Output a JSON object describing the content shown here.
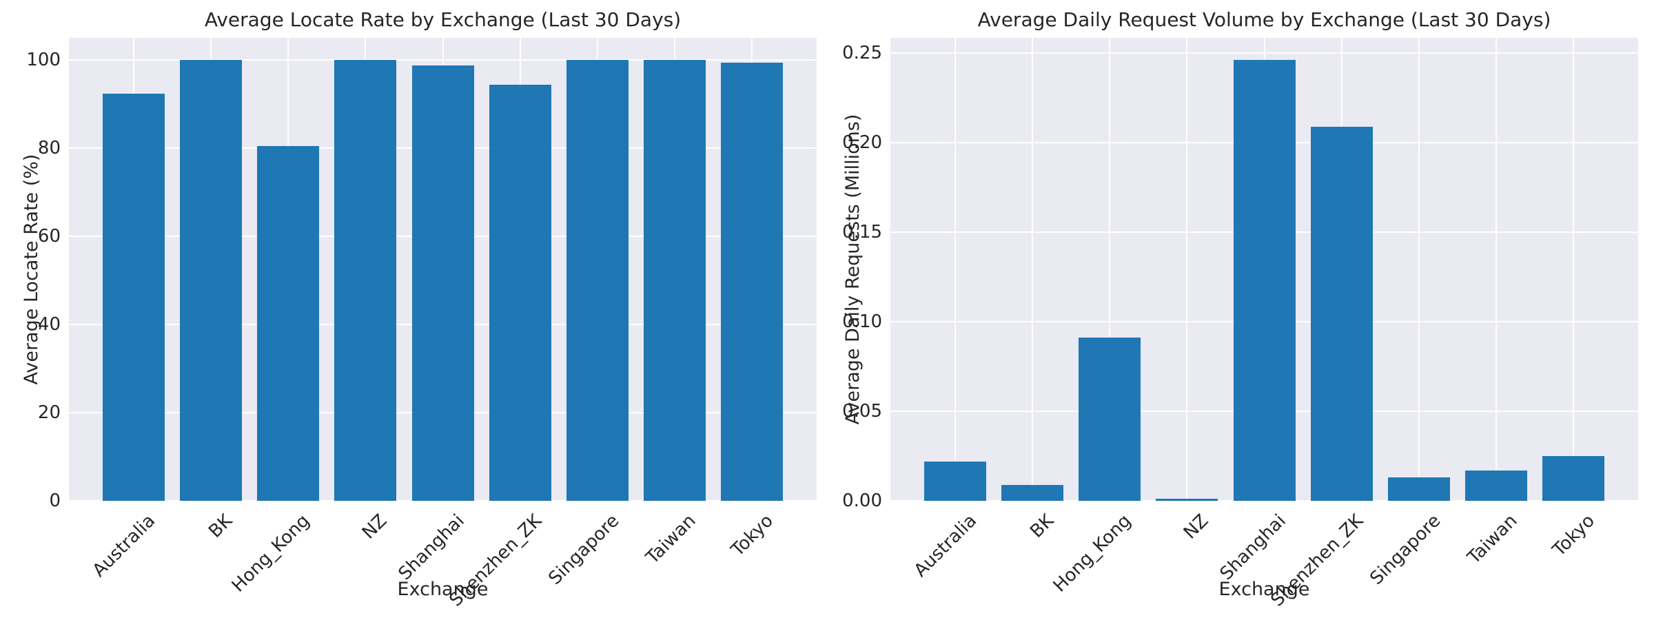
{
  "colors": {
    "bar": "#1f77b4",
    "plot_background": "#eaeaf2",
    "gridline": "#ffffff",
    "text": "#262626",
    "figure_background": "#ffffff"
  },
  "chart_data": [
    {
      "type": "bar",
      "title": "Average Locate Rate by Exchange (Last 30 Days)",
      "xlabel": "Exchange",
      "ylabel": "Average Locate Rate (%)",
      "categories": [
        "Australia",
        "BK",
        "Hong_Kong",
        "NZ",
        "Shanghai",
        "Shenzhen_ZK",
        "Singapore",
        "Taiwan",
        "Tokyo"
      ],
      "values": [
        92.3,
        100.0,
        80.4,
        100.0,
        98.8,
        94.4,
        100.0,
        100.0,
        99.4
      ],
      "ylim": [
        0,
        105
      ],
      "yticks": [
        0,
        20,
        40,
        60,
        80,
        100
      ],
      "ytick_labels": [
        "0",
        "20",
        "40",
        "60",
        "80",
        "100"
      ],
      "xtick_rotation_deg": 45,
      "grid": "on",
      "legend": "none"
    },
    {
      "type": "bar",
      "title": "Average Daily Request Volume by Exchange (Last 30 Days)",
      "xlabel": "Exchange",
      "ylabel": "Average Daily Requests (Millions)",
      "categories": [
        "Australia",
        "BK",
        "Hong_Kong",
        "NZ",
        "Shanghai",
        "Shenzhen_ZK",
        "Singapore",
        "Taiwan",
        "Tokyo"
      ],
      "values": [
        0.022,
        0.009,
        0.091,
        0.001,
        0.246,
        0.209,
        0.013,
        0.017,
        0.025
      ],
      "ylim": [
        0,
        0.2585
      ],
      "yticks": [
        0.0,
        0.05,
        0.1,
        0.15,
        0.2,
        0.25
      ],
      "ytick_labels": [
        "0.00",
        "0.05",
        "0.10",
        "0.15",
        "0.20",
        "0.25"
      ],
      "xtick_rotation_deg": 45,
      "grid": "on",
      "legend": "none"
    }
  ]
}
